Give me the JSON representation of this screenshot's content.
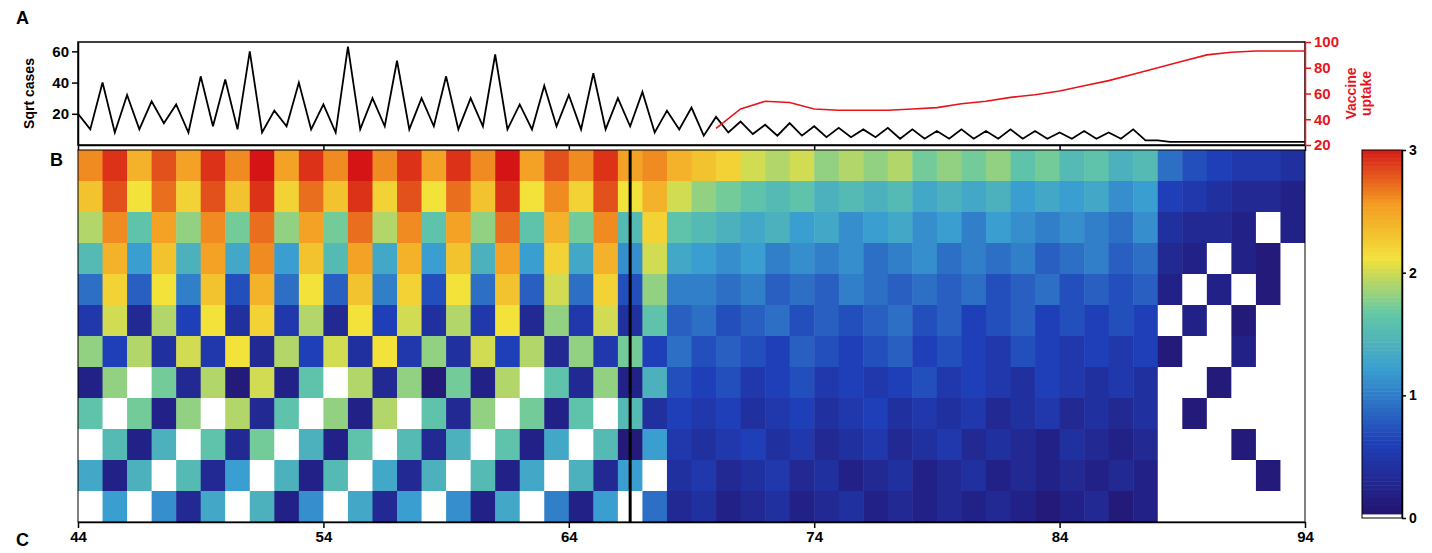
{
  "chart_data": [
    {
      "type": "line",
      "panel": "A",
      "ylabel": "Sqrt cases",
      "y2label": "Vaccine uptake",
      "xlim": [
        44,
        94
      ],
      "xticks": [
        44,
        54,
        64,
        74,
        84,
        94
      ],
      "ylim": [
        0,
        66
      ],
      "yticks": [
        20,
        40,
        60
      ],
      "y2lim": [
        20,
        100
      ],
      "y2ticks": [
        20,
        40,
        60,
        80,
        100
      ],
      "tick_labels": "y",
      "series": [
        {
          "color": "#000000",
          "x": [
            44.0,
            44.5,
            45.0,
            45.5,
            46.0,
            46.5,
            47.0,
            47.5,
            48.0,
            48.5,
            49.0,
            49.5,
            50.0,
            50.5,
            51.0,
            51.5,
            52.0,
            52.5,
            53.0,
            53.5,
            54.0,
            54.5,
            55.0,
            55.5,
            56.0,
            56.5,
            57.0,
            57.5,
            58.0,
            58.5,
            59.0,
            59.5,
            60.0,
            60.5,
            61.0,
            61.5,
            62.0,
            62.5,
            63.0,
            63.5,
            64.0,
            64.5,
            65.0,
            65.5,
            66.0,
            66.5,
            67.0,
            67.5,
            68.0,
            68.5,
            69.0,
            69.5,
            70.0,
            70.5,
            71.0,
            71.5,
            72.0,
            72.5,
            73.0,
            73.5,
            74.0,
            74.5,
            75.0,
            75.5,
            76.0,
            76.5,
            77.0,
            77.5,
            78.0,
            78.5,
            79.0,
            79.5,
            80.0,
            80.5,
            81.0,
            81.5,
            82.0,
            82.5,
            83.0,
            83.5,
            84.0,
            84.5,
            85.0,
            85.5,
            86.0,
            86.5,
            87.0,
            87.5,
            88.0,
            88.5,
            89.0,
            89.5,
            90.0,
            90.5,
            91.0,
            91.5,
            92.0,
            92.5,
            93.0,
            93.5,
            94.0
          ],
          "values": [
            20,
            10,
            40,
            8,
            32,
            10,
            28,
            14,
            26,
            8,
            44,
            12,
            42,
            10,
            60,
            8,
            22,
            12,
            40,
            10,
            26,
            8,
            63,
            10,
            30,
            12,
            54,
            10,
            30,
            12,
            44,
            10,
            30,
            12,
            58,
            10,
            26,
            10,
            38,
            12,
            32,
            10,
            46,
            10,
            30,
            12,
            34,
            8,
            22,
            10,
            24,
            6,
            18,
            8,
            15,
            7,
            13,
            6,
            14,
            6,
            12,
            5,
            11,
            5,
            10,
            5,
            11,
            4,
            10,
            4,
            9,
            4,
            10,
            4,
            9,
            4,
            10,
            4,
            9,
            4,
            8,
            4,
            9,
            4,
            8,
            4,
            10,
            3,
            3,
            2,
            2,
            2,
            2,
            2,
            2,
            2,
            2,
            2,
            2,
            2,
            2
          ]
        },
        {
          "color": "#e8141b",
          "axis": "y2",
          "x": [
            70,
            71,
            72,
            73,
            74,
            75,
            76,
            77,
            78,
            79,
            80,
            81,
            82,
            83,
            84,
            85,
            86,
            87,
            88,
            89,
            90,
            91,
            92,
            93,
            94
          ],
          "values": [
            33,
            48,
            54,
            53,
            48,
            47,
            47,
            47,
            48,
            49,
            52,
            54,
            57,
            59,
            62,
            66,
            70,
            75,
            80,
            85,
            90,
            92,
            93,
            93,
            93
          ]
        }
      ]
    },
    {
      "type": "heatmap",
      "panel": "B",
      "xaxis_panel": "C",
      "xlim": [
        44,
        94
      ],
      "xticks": [
        44,
        54,
        64,
        74,
        84,
        94
      ],
      "tick_labels": "x",
      "x": [
        44,
        45,
        46,
        47,
        48,
        49,
        50,
        51,
        52,
        53,
        54,
        55,
        56,
        57,
        58,
        59,
        60,
        61,
        62,
        63,
        64,
        65,
        66,
        67,
        68,
        69,
        70,
        71,
        72,
        73,
        74,
        75,
        76,
        77,
        78,
        79,
        80,
        81,
        82,
        83,
        84,
        85,
        86,
        87,
        88,
        89,
        90,
        91,
        92,
        93
      ],
      "vline": 66.5,
      "colorbar_range": [
        0,
        3
      ],
      "colorbar_ticks": [
        0,
        1,
        2,
        3
      ],
      "cells": [
        [
          2.6,
          2.9,
          2.4,
          2.8,
          2.5,
          2.9,
          2.6,
          3.0,
          2.5,
          2.9,
          2.6,
          3.0,
          2.6,
          2.9,
          2.5,
          2.9,
          2.6,
          3.0,
          2.5,
          2.8,
          2.6,
          2.9,
          2.5,
          2.6,
          2.4,
          2.3,
          2.2,
          2.0,
          1.9,
          2.0,
          1.8,
          1.9,
          1.8,
          1.9,
          1.7,
          1.8,
          1.7,
          1.8,
          1.6,
          1.7,
          1.5,
          1.6,
          1.4,
          1.5,
          0.9,
          0.7,
          0.6,
          0.5,
          0.5,
          0.4
        ],
        [
          2.3,
          2.8,
          2.1,
          2.7,
          2.2,
          2.8,
          2.3,
          2.9,
          2.2,
          2.7,
          2.3,
          2.9,
          2.2,
          2.8,
          2.1,
          2.7,
          2.3,
          2.9,
          2.1,
          2.6,
          2.2,
          2.8,
          2.1,
          2.4,
          2.0,
          1.8,
          1.7,
          1.6,
          1.5,
          1.6,
          1.4,
          1.5,
          1.4,
          1.5,
          1.3,
          1.4,
          1.3,
          1.4,
          1.2,
          1.3,
          1.2,
          1.3,
          1.1,
          1.2,
          0.6,
          0.5,
          0.4,
          0.3,
          0.3,
          0.2
        ],
        [
          1.9,
          2.6,
          1.6,
          2.5,
          1.8,
          2.6,
          1.7,
          2.7,
          1.8,
          2.5,
          1.7,
          2.7,
          1.9,
          2.6,
          1.6,
          2.5,
          1.8,
          2.7,
          1.6,
          2.4,
          1.7,
          2.6,
          1.5,
          2.2,
          1.6,
          1.5,
          1.4,
          1.3,
          1.4,
          1.2,
          1.3,
          1.1,
          1.2,
          1.3,
          1.1,
          1.2,
          1.0,
          1.2,
          1.1,
          1.0,
          1.1,
          1.0,
          0.9,
          1.1,
          0.4,
          0.3,
          0.3,
          0.2,
          0.0,
          0.2
        ],
        [
          1.5,
          2.4,
          1.2,
          2.3,
          1.4,
          2.5,
          1.3,
          2.6,
          1.2,
          2.3,
          1.5,
          2.5,
          1.3,
          2.4,
          1.2,
          2.3,
          1.4,
          2.5,
          1.2,
          2.2,
          1.3,
          2.4,
          1.1,
          2.0,
          1.3,
          1.2,
          1.1,
          1.2,
          1.0,
          1.1,
          1.0,
          1.1,
          0.9,
          1.0,
          1.1,
          0.9,
          1.0,
          0.9,
          1.0,
          0.8,
          0.9,
          1.0,
          0.8,
          0.9,
          0.3,
          0.2,
          0.0,
          0.2,
          0.1,
          0.0
        ],
        [
          0.9,
          2.2,
          0.8,
          2.1,
          1.0,
          2.3,
          0.7,
          2.4,
          0.9,
          2.1,
          0.8,
          2.3,
          1.0,
          2.2,
          0.7,
          2.1,
          0.9,
          2.3,
          0.8,
          2.0,
          0.9,
          2.2,
          0.7,
          1.8,
          1.0,
          1.0,
          0.9,
          1.0,
          0.8,
          0.9,
          0.8,
          1.0,
          0.9,
          0.8,
          0.9,
          0.8,
          0.9,
          0.7,
          0.8,
          0.9,
          0.7,
          0.8,
          0.7,
          0.8,
          0.2,
          0.0,
          0.2,
          0.0,
          0.1,
          0.0
        ],
        [
          0.5,
          2.0,
          0.3,
          1.9,
          0.6,
          2.1,
          0.4,
          2.2,
          0.5,
          1.9,
          0.3,
          2.1,
          0.6,
          2.0,
          0.4,
          1.9,
          0.5,
          2.1,
          0.3,
          1.8,
          0.5,
          2.0,
          0.4,
          1.6,
          0.8,
          0.9,
          0.7,
          0.8,
          0.9,
          0.7,
          0.8,
          0.7,
          0.8,
          0.9,
          0.7,
          0.8,
          0.6,
          0.7,
          0.8,
          0.6,
          0.7,
          0.6,
          0.7,
          0.6,
          0.0,
          0.2,
          0.0,
          0.1,
          0.0,
          0.0
        ],
        [
          1.8,
          0.6,
          1.9,
          0.4,
          2.0,
          0.5,
          2.1,
          0.3,
          1.9,
          0.6,
          2.0,
          0.4,
          2.1,
          0.5,
          1.8,
          0.4,
          2.0,
          0.6,
          1.9,
          0.3,
          1.8,
          0.5,
          1.7,
          0.6,
          0.9,
          0.7,
          0.8,
          0.7,
          0.6,
          0.8,
          0.7,
          0.6,
          0.7,
          0.8,
          0.6,
          0.7,
          0.6,
          0.5,
          0.7,
          0.6,
          0.5,
          0.6,
          0.5,
          0.6,
          0.1,
          0.0,
          0.0,
          0.2,
          0.0,
          0.0
        ],
        [
          0.2,
          1.8,
          0.0,
          1.7,
          0.3,
          1.9,
          0.1,
          2.0,
          0.2,
          1.6,
          0.0,
          1.9,
          0.3,
          1.8,
          0.1,
          1.7,
          0.2,
          1.9,
          0.0,
          1.6,
          0.3,
          1.8,
          0.2,
          1.4,
          0.7,
          0.6,
          0.7,
          0.5,
          0.6,
          0.7,
          0.5,
          0.6,
          0.5,
          0.6,
          0.7,
          0.5,
          0.6,
          0.5,
          0.4,
          0.6,
          0.5,
          0.4,
          0.5,
          0.4,
          0.0,
          0.0,
          0.1,
          0.0,
          0.0,
          0.0
        ],
        [
          1.6,
          0.0,
          1.7,
          0.2,
          1.8,
          0.0,
          1.9,
          0.3,
          1.6,
          0.0,
          1.8,
          0.2,
          1.9,
          0.0,
          1.6,
          0.3,
          1.8,
          0.0,
          1.7,
          0.2,
          1.6,
          0.0,
          1.5,
          0.4,
          0.6,
          0.5,
          0.6,
          0.4,
          0.5,
          0.6,
          0.4,
          0.5,
          0.6,
          0.4,
          0.5,
          0.4,
          0.5,
          0.3,
          0.4,
          0.5,
          0.3,
          0.4,
          0.3,
          0.4,
          0.0,
          0.1,
          0.0,
          0.0,
          0.0,
          0.0
        ],
        [
          0.0,
          1.5,
          0.2,
          1.4,
          0.0,
          1.6,
          0.3,
          1.7,
          0.0,
          1.4,
          0.2,
          1.6,
          0.0,
          1.5,
          0.3,
          1.4,
          0.0,
          1.6,
          0.2,
          1.3,
          0.0,
          1.5,
          0.1,
          1.2,
          0.5,
          0.4,
          0.5,
          0.6,
          0.4,
          0.5,
          0.3,
          0.4,
          0.5,
          0.3,
          0.4,
          0.5,
          0.3,
          0.4,
          0.3,
          0.2,
          0.4,
          0.3,
          0.2,
          0.3,
          0.0,
          0.0,
          0.0,
          0.1,
          0.0,
          0.0
        ],
        [
          1.3,
          0.2,
          1.4,
          0.0,
          1.5,
          0.3,
          1.2,
          0.0,
          1.4,
          0.2,
          1.5,
          0.0,
          1.3,
          0.3,
          1.4,
          0.0,
          1.5,
          0.2,
          1.3,
          0.0,
          1.4,
          0.3,
          1.2,
          0.0,
          0.4,
          0.5,
          0.3,
          0.4,
          0.5,
          0.3,
          0.4,
          0.2,
          0.3,
          0.4,
          0.2,
          0.3,
          0.4,
          0.2,
          0.3,
          0.2,
          0.3,
          0.2,
          0.3,
          0.2,
          0.0,
          0.0,
          0.0,
          0.0,
          0.1,
          0.0
        ],
        [
          0.0,
          1.2,
          0.0,
          1.1,
          0.3,
          1.3,
          0.0,
          1.4,
          0.2,
          1.1,
          0.0,
          1.3,
          0.3,
          1.2,
          0.0,
          1.1,
          0.2,
          1.3,
          0.0,
          1.0,
          0.2,
          1.2,
          0.0,
          0.9,
          0.3,
          0.4,
          0.2,
          0.3,
          0.4,
          0.2,
          0.3,
          0.4,
          0.2,
          0.3,
          0.2,
          0.3,
          0.2,
          0.3,
          0.2,
          0.1,
          0.2,
          0.3,
          0.1,
          0.2,
          0.0,
          0.0,
          0.0,
          0.0,
          0.0,
          0.0
        ]
      ]
    }
  ]
}
